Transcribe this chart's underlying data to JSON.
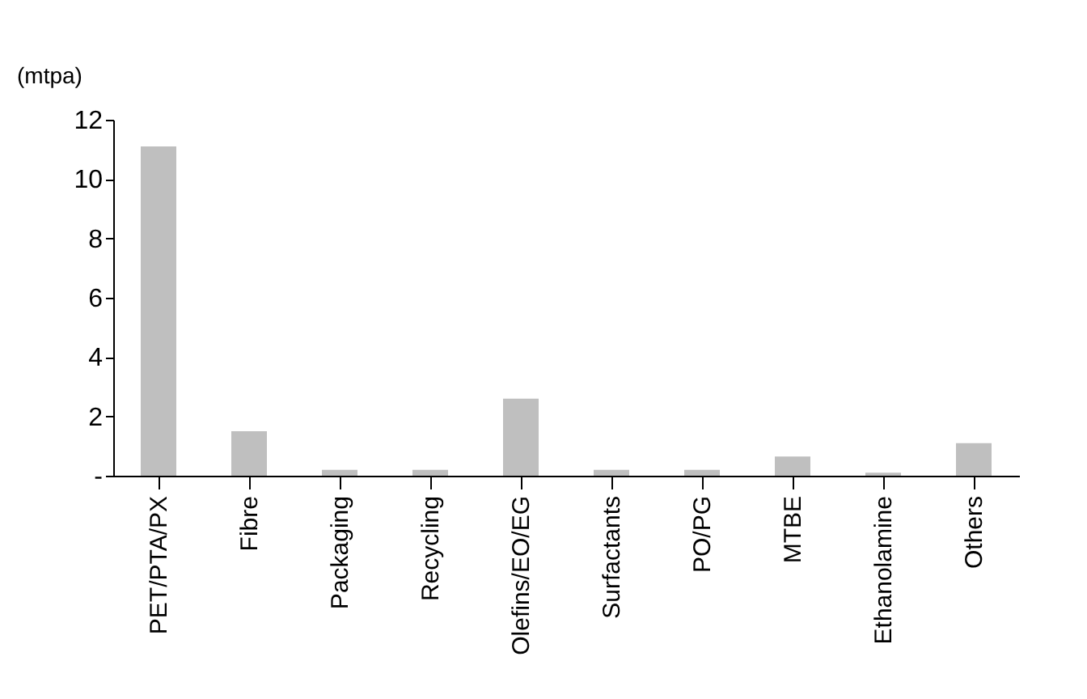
{
  "chart_data": {
    "type": "bar",
    "ylabel": "(mtpa)",
    "categories": [
      "PET/PTA/PX",
      "Fibre",
      "Packaging",
      "Recycling",
      "Olefins/EO/EG",
      "Surfactants",
      "PO/PG",
      "MTBE",
      "Ethanolamine",
      "Others"
    ],
    "values": [
      11.1,
      1.5,
      0.2,
      0.2,
      2.6,
      0.2,
      0.2,
      0.65,
      0.1,
      1.1
    ],
    "color": "#bfbfbf",
    "ylim": [
      0,
      12
    ],
    "yticks": [
      {
        "value": 0,
        "label": "-"
      },
      2,
      4,
      6,
      8,
      10,
      12
    ],
    "grid": false
  }
}
